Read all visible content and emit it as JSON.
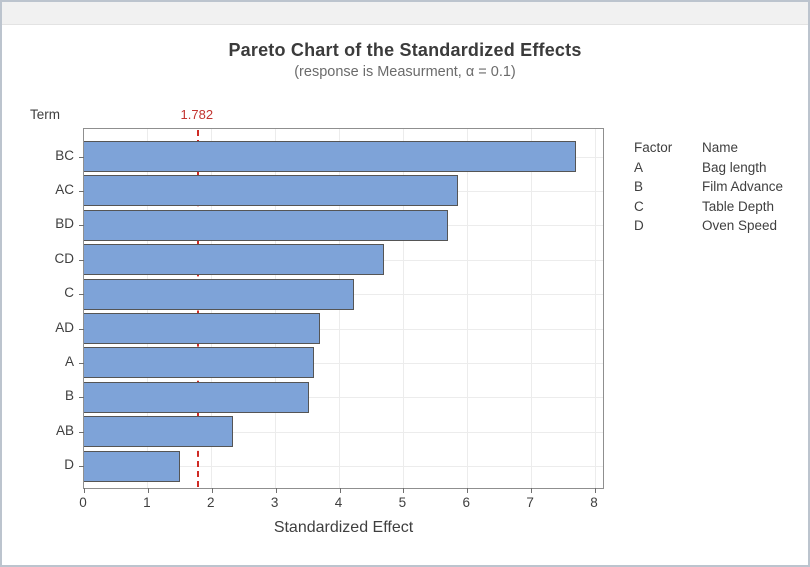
{
  "window": {
    "title": ""
  },
  "colors": {
    "bar_fill": "#7ea3d8",
    "bar_border": "#555555",
    "reference_red": "#cf2b25",
    "gridline": "#ececec",
    "frame": "#8f8f8f",
    "title_text": "#3b3b3b",
    "subtitle_text": "#6b6b6b",
    "axis_text": "#3f3f3f",
    "titlebar_bg": "#f1f1f1",
    "window_border": "#bcc4ce"
  },
  "chart_data": {
    "type": "bar",
    "orientation": "horizontal",
    "title": "Pareto Chart of the Standardized Effects",
    "subtitle": "(response is Measurment, α = 0.1)",
    "xlabel": "Standardized Effect",
    "ylabel": "Term",
    "xlim": [
      0,
      8
    ],
    "xticks": [
      0,
      1,
      2,
      3,
      4,
      5,
      6,
      7,
      8
    ],
    "grid": "both",
    "categories": [
      "BC",
      "AC",
      "BD",
      "CD",
      "C",
      "AD",
      "A",
      "B",
      "AB",
      "D"
    ],
    "values": [
      7.7,
      5.85,
      5.7,
      4.7,
      4.22,
      3.7,
      3.6,
      3.52,
      2.33,
      1.5
    ],
    "reference_line": {
      "value": 1.782,
      "label": "1.782"
    },
    "legend": {
      "position": "right",
      "headers": [
        "Factor",
        "Name"
      ],
      "rows": [
        [
          "A",
          "Bag length"
        ],
        [
          "B",
          "Film Advance"
        ],
        [
          "C",
          "Table Depth"
        ],
        [
          "D",
          "Oven Speed"
        ]
      ]
    }
  }
}
